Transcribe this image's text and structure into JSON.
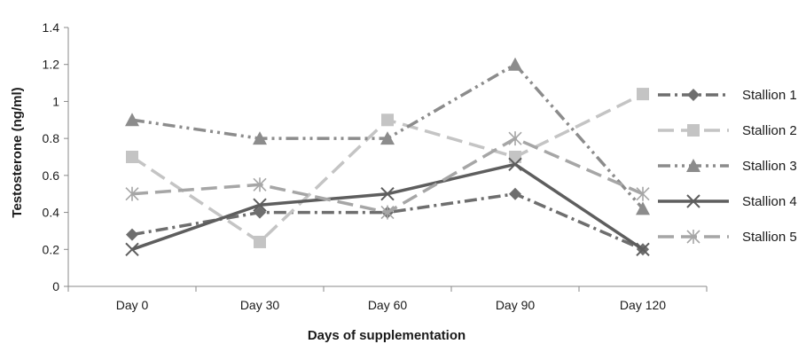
{
  "chart_data": {
    "type": "line",
    "xlabel": "Days of supplementation",
    "ylabel": "Testosterone (ng/ml)",
    "categories": [
      "Day 0",
      "Day 30",
      "Day 60",
      "Day 90",
      "Day 120"
    ],
    "ylim": [
      0,
      1.4
    ],
    "yticks": [
      "0",
      "0.2",
      "0.4",
      "0.6",
      "0.8",
      "1",
      "1.2",
      "1.4"
    ],
    "grid": false,
    "legend_position": "right",
    "series": [
      {
        "name": "Stallion 1",
        "values": [
          0.28,
          0.4,
          0.4,
          0.5,
          0.2
        ],
        "color": "#6e6e6e",
        "marker": "diamond",
        "dash": "dash-dot"
      },
      {
        "name": "Stallion 2",
        "values": [
          0.7,
          0.24,
          0.9,
          0.7,
          1.04
        ],
        "color": "#c4c4c4",
        "marker": "square",
        "dash": "long-dash"
      },
      {
        "name": "Stallion 3",
        "values": [
          0.9,
          0.8,
          0.8,
          1.2,
          0.42
        ],
        "color": "#8c8c8c",
        "marker": "triangle",
        "dash": "dash-dot-dot"
      },
      {
        "name": "Stallion 4",
        "values": [
          0.2,
          0.44,
          0.5,
          0.66,
          0.2
        ],
        "color": "#5e5e5e",
        "marker": "x",
        "dash": "solid"
      },
      {
        "name": "Stallion 5",
        "values": [
          0.5,
          0.55,
          0.4,
          0.8,
          0.5
        ],
        "color": "#a6a6a6",
        "marker": "asterisk",
        "dash": "long-dash"
      }
    ]
  }
}
